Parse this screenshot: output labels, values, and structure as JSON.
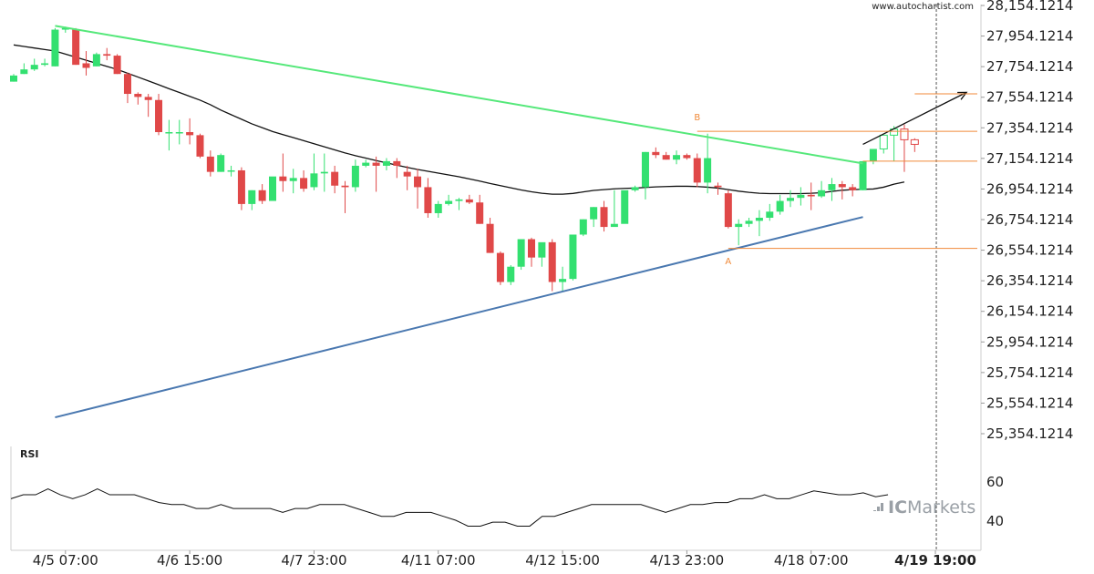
{
  "source": "www.autochartist.com",
  "brand": {
    "prefix": "IC",
    "suffix": "Markets"
  },
  "colors": {
    "up": "#33e070",
    "down": "#e04848",
    "pending": "#e04848",
    "resistance": "#55e87a",
    "support": "#4a78b0",
    "ma": "#111111",
    "level": "#f08a3a",
    "arrow": "#111111",
    "rsi": "#111111"
  },
  "chart_data": {
    "type": "candlestick",
    "y_ticks": [
      "28,154.1214",
      "27,954.1214",
      "27,754.1214",
      "27,554.1214",
      "27,354.1214",
      "27,154.1214",
      "26,954.1214",
      "26,754.1214",
      "26,554.1214",
      "26,354.1214",
      "26,154.1214",
      "25,954.1214",
      "25,754.1214",
      "25,554.1214",
      "25,354.1214"
    ],
    "ylim": [
      25354.1214,
      28154.1214
    ],
    "x_labels": [
      "4/5 07:00",
      "4/6 15:00",
      "4/7 23:00",
      "4/11 07:00",
      "4/12 15:00",
      "4/13 23:00",
      "4/18 07:00",
      "4/19 19:00"
    ],
    "x_label_index": [
      5,
      17,
      29,
      41,
      53,
      65,
      77,
      89
    ],
    "highlight_label": "4/19 19:00",
    "current_index": 89,
    "candles": [
      [
        27656,
        27706,
        27696,
        27656
      ],
      [
        27706,
        27776,
        27736,
        27706
      ],
      [
        27736,
        27806,
        27766,
        27726
      ],
      [
        27766,
        27806,
        27776,
        27756
      ],
      [
        27756,
        28006,
        27996,
        27756
      ],
      [
        27996,
        28016,
        28006,
        27976
      ],
      [
        27996,
        28006,
        27766,
        27766
      ],
      [
        27776,
        27856,
        27746,
        27696
      ],
      [
        27756,
        27846,
        27836,
        27756
      ],
      [
        27836,
        27876,
        27826,
        27796
      ],
      [
        27826,
        27836,
        27706,
        27706
      ],
      [
        27706,
        27716,
        27576,
        27516
      ],
      [
        27576,
        27586,
        27556,
        27506
      ],
      [
        27556,
        27576,
        27536,
        27426
      ],
      [
        27536,
        27576,
        27326,
        27306
      ],
      [
        27326,
        27406,
        27326,
        27206
      ],
      [
        27326,
        27406,
        27326,
        27246
      ],
      [
        27326,
        27416,
        27306,
        27246
      ],
      [
        27306,
        27316,
        27166,
        27156
      ],
      [
        27166,
        27206,
        27066,
        27036
      ],
      [
        27066,
        27186,
        27176,
        27066
      ],
      [
        27076,
        27106,
        27076,
        27036
      ],
      [
        27076,
        27096,
        26856,
        26816
      ],
      [
        26856,
        26946,
        26946,
        26816
      ],
      [
        26946,
        26986,
        26876,
        26856
      ],
      [
        26876,
        27026,
        27036,
        26876
      ],
      [
        27036,
        27186,
        27006,
        26936
      ],
      [
        27006,
        27086,
        27026,
        26926
      ],
      [
        27026,
        27076,
        26956,
        26936
      ],
      [
        26966,
        27186,
        27056,
        26946
      ],
      [
        27056,
        27186,
        27066,
        26936
      ],
      [
        27066,
        27106,
        26976,
        26926
      ],
      [
        26976,
        27006,
        26966,
        26796
      ],
      [
        26966,
        27146,
        27106,
        26936
      ],
      [
        27106,
        27146,
        27126,
        27096
      ],
      [
        27126,
        27166,
        27106,
        26936
      ],
      [
        27106,
        27156,
        27136,
        27076
      ],
      [
        27136,
        27156,
        27106,
        27026
      ],
      [
        27066,
        27106,
        27036,
        26946
      ],
      [
        27036,
        27086,
        26966,
        26826
      ],
      [
        26966,
        27026,
        26796,
        26766
      ],
      [
        26796,
        26876,
        26856,
        26766
      ],
      [
        26856,
        26916,
        26876,
        26846
      ],
      [
        26876,
        26896,
        26886,
        26816
      ],
      [
        26886,
        26916,
        26866,
        26856
      ],
      [
        26866,
        26916,
        26726,
        26726
      ],
      [
        26726,
        26766,
        26536,
        26536
      ],
      [
        26536,
        26546,
        26346,
        26326
      ],
      [
        26346,
        26456,
        26446,
        26326
      ],
      [
        26446,
        26576,
        26626,
        26426
      ],
      [
        26626,
        26636,
        26506,
        26446
      ],
      [
        26506,
        26596,
        26606,
        26446
      ],
      [
        26606,
        26626,
        26346,
        26286
      ],
      [
        26346,
        26446,
        26366,
        26286
      ],
      [
        26366,
        26636,
        26656,
        26356
      ],
      [
        26656,
        26756,
        26756,
        26646
      ],
      [
        26756,
        26836,
        26836,
        26706
      ],
      [
        26836,
        26876,
        26706,
        26676
      ],
      [
        26706,
        26946,
        26726,
        26726
      ],
      [
        26726,
        26926,
        26946,
        26926
      ],
      [
        26946,
        26976,
        26966,
        26936
      ],
      [
        26966,
        27196,
        27196,
        26886
      ],
      [
        27196,
        27226,
        27176,
        27156
      ],
      [
        27176,
        27196,
        27146,
        27146
      ],
      [
        27146,
        27206,
        27176,
        27116
      ],
      [
        27176,
        27186,
        27156,
        27146
      ],
      [
        27156,
        27186,
        26996,
        26966
      ],
      [
        26996,
        27316,
        27156,
        26926
      ],
      [
        26976,
        26996,
        26966,
        26916
      ],
      [
        26926,
        26946,
        26706,
        26696
      ],
      [
        26706,
        26756,
        26726,
        26586
      ],
      [
        26726,
        26766,
        26746,
        26706
      ],
      [
        26746,
        26816,
        26766,
        26646
      ],
      [
        26766,
        26856,
        26806,
        26746
      ],
      [
        26806,
        26916,
        26876,
        26786
      ],
      [
        26876,
        26946,
        26896,
        26836
      ],
      [
        26896,
        26966,
        26916,
        26846
      ],
      [
        26916,
        26996,
        26906,
        26816
      ],
      [
        26906,
        27006,
        26946,
        26896
      ],
      [
        26946,
        27026,
        26986,
        26876
      ],
      [
        26986,
        27006,
        26966,
        26886
      ],
      [
        26966,
        26986,
        26946,
        26906
      ],
      [
        26946,
        27116,
        27136,
        26946
      ],
      [
        27136,
        27206,
        27216,
        27116
      ],
      [
        27216,
        27286,
        27306,
        27186
      ],
      [
        27306,
        27366,
        27346,
        27136
      ],
      [
        27346,
        27376,
        27276,
        27066
      ],
      [
        27276,
        27286,
        27246,
        27196
      ]
    ],
    "moving_average": [
      27896,
      27886,
      27876,
      27866,
      27856,
      27836,
      27816,
      27796,
      27776,
      27756,
      27736,
      27711,
      27686,
      27661,
      27636,
      27610,
      27585,
      27560,
      27535,
      27505,
      27470,
      27440,
      27410,
      27380,
      27355,
      27330,
      27310,
      27290,
      27270,
      27250,
      27230,
      27210,
      27190,
      27172,
      27156,
      27140,
      27125,
      27110,
      27095,
      27082,
      27070,
      27058,
      27046,
      27034,
      27020,
      27006,
      26990,
      26976,
      26962,
      26948,
      26936,
      26926,
      26920,
      26920,
      26925,
      26935,
      26945,
      26950,
      26955,
      26958,
      26960,
      26964,
      26968,
      26970,
      26972,
      26972,
      26970,
      26966,
      26960,
      26950,
      26940,
      26932,
      26926,
      26924,
      26924,
      26924,
      26924,
      26926,
      26930,
      26938,
      26946,
      26950,
      26952,
      26954,
      26966,
      26986,
      27000
    ],
    "resistance_line": {
      "from": {
        "index": 4,
        "price": 28021
      },
      "to": {
        "index": 82,
        "price": 27121
      }
    },
    "support_line": {
      "from": {
        "index": 4,
        "price": 25461
      },
      "to": {
        "index": 82,
        "price": 26771
      }
    },
    "target_arrow": {
      "from": {
        "index": 82,
        "price": 27246
      },
      "to": {
        "index": 92,
        "price": 27586
      }
    },
    "levels": [
      {
        "price": 27576,
        "from_index": 87,
        "to_index": 94
      },
      {
        "price": 27331,
        "from_index": 66,
        "to_index": 94
      },
      {
        "price": 27136,
        "from_index": 82,
        "to_index": 94
      },
      {
        "price": 26566,
        "from_index": 69,
        "to_index": 94
      }
    ],
    "pattern_points": [
      {
        "name": "B",
        "index": 66,
        "price": 27391
      },
      {
        "name": "A",
        "index": 69,
        "price": 26521
      }
    ],
    "rsi": {
      "title": "RSI",
      "ticks": [
        {
          "label": "60",
          "value": 60
        },
        {
          "label": "40",
          "value": 40
        }
      ],
      "ylim": [
        25,
        75
      ],
      "values": [
        51,
        53,
        53,
        56,
        53,
        51,
        53,
        56,
        53,
        53,
        53,
        51,
        49,
        48,
        48,
        46,
        46,
        48,
        46,
        46,
        46,
        46,
        44,
        46,
        46,
        48,
        48,
        48,
        46,
        44,
        42,
        42,
        44,
        44,
        44,
        42,
        40,
        37,
        37,
        39,
        39,
        37,
        37,
        42,
        42,
        44,
        46,
        48,
        48,
        48,
        48,
        48,
        46,
        44,
        46,
        48,
        48,
        49,
        49,
        51,
        51,
        53,
        51,
        51,
        53,
        55,
        54,
        53,
        53,
        54,
        52,
        53
      ]
    }
  }
}
